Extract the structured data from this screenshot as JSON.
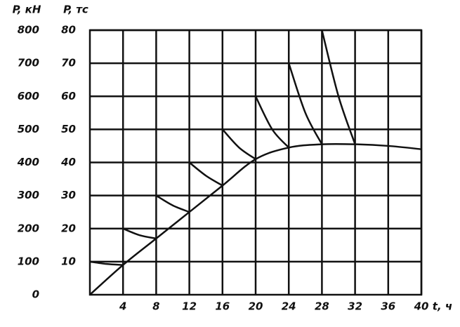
{
  "chart_data": {
    "type": "line",
    "y_label": "P, тс",
    "y2_label": "P, кН",
    "x_label": "t, ч",
    "xlim": [
      0,
      40
    ],
    "xticks": [
      4,
      8,
      12,
      16,
      20,
      24,
      28,
      32,
      36,
      40
    ],
    "ylim": [
      0,
      80
    ],
    "yticks": [
      10,
      20,
      30,
      40,
      50,
      60,
      70,
      80
    ],
    "y2lim": [
      0,
      800
    ],
    "y2ticks": [
      0,
      100,
      200,
      300,
      400,
      500,
      600,
      700,
      800
    ],
    "grid": true,
    "series": [
      {
        "color": "#111111",
        "x": [
          0,
          4,
          8,
          12,
          16,
          20,
          24,
          28,
          32,
          36,
          40
        ],
        "values": [
          0,
          9,
          17,
          25,
          33,
          41,
          44.5,
          45.5,
          45.5,
          45,
          44
        ]
      },
      {
        "color": "#111111",
        "x": [
          0,
          2,
          4
        ],
        "values": [
          10,
          9.3,
          9
        ]
      },
      {
        "color": "#111111",
        "x": [
          4,
          6,
          8
        ],
        "values": [
          20,
          18,
          17
        ]
      },
      {
        "color": "#111111",
        "x": [
          8,
          10,
          12
        ],
        "values": [
          30,
          27,
          25
        ]
      },
      {
        "color": "#111111",
        "x": [
          12,
          14,
          16
        ],
        "values": [
          40,
          36,
          33
        ]
      },
      {
        "color": "#111111",
        "x": [
          16,
          18,
          20
        ],
        "values": [
          50,
          44.5,
          41
        ]
      },
      {
        "color": "#111111",
        "x": [
          20,
          22,
          24
        ],
        "values": [
          60,
          50,
          44.5
        ]
      },
      {
        "color": "#111111",
        "x": [
          24,
          26,
          28
        ],
        "values": [
          70,
          55,
          45.5
        ]
      },
      {
        "color": "#111111",
        "x": [
          28,
          30,
          32
        ],
        "values": [
          80,
          60,
          45.5
        ]
      }
    ]
  }
}
